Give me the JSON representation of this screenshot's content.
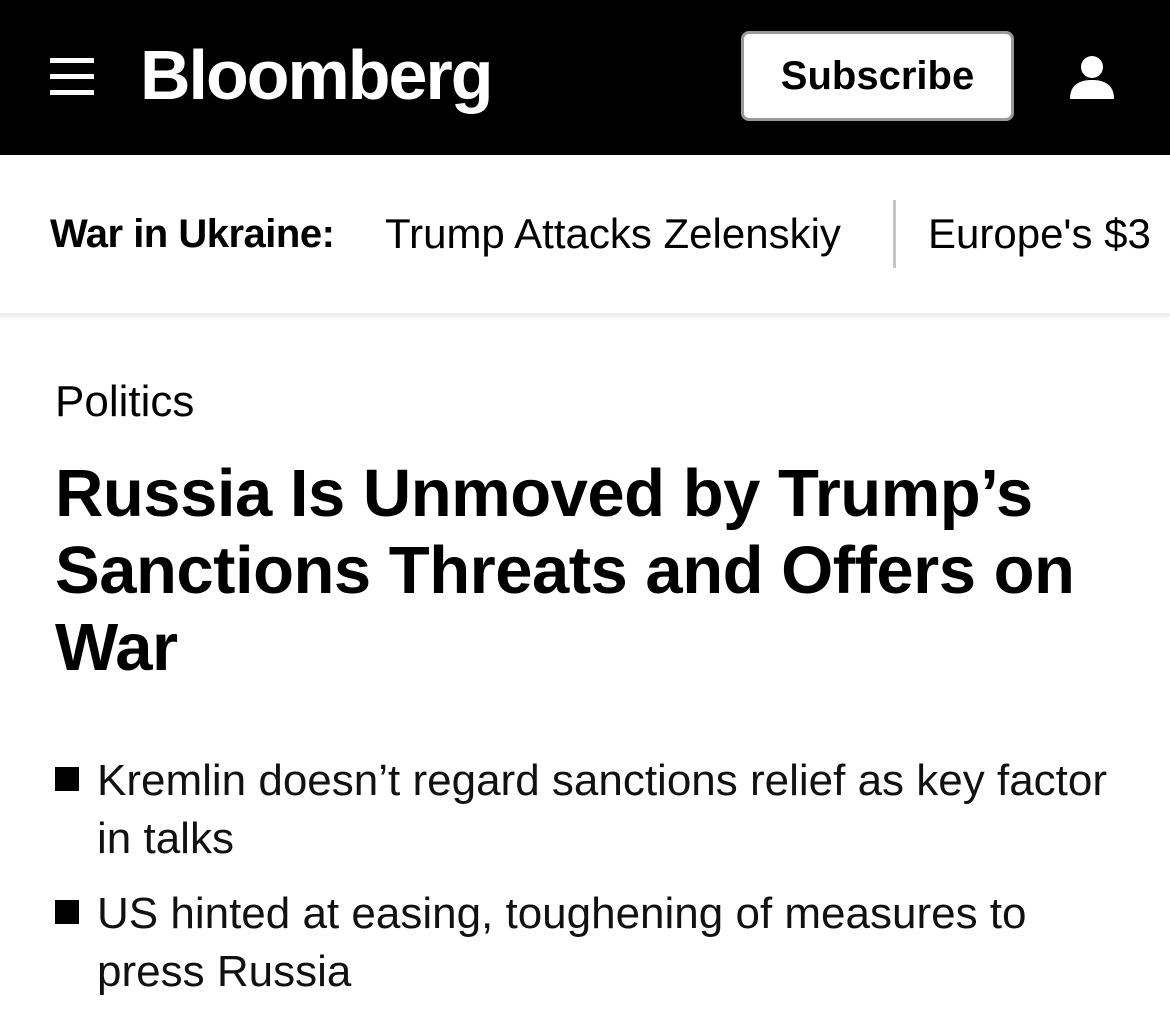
{
  "header": {
    "logo_text": "Bloomberg",
    "subscribe_label": "Subscribe",
    "menu_icon": "hamburger-menu-icon",
    "account_icon": "user-account-icon",
    "background_color": "#000000"
  },
  "ticker": {
    "label": "War in Ukraine:",
    "links": [
      "Trump Attacks Zelenskiy",
      "Europe's $3"
    ]
  },
  "article": {
    "section": "Politics",
    "headline": "Russia Is Unmoved by Trump’s Sanctions Threats and Offers on War",
    "bullets": [
      "Kremlin doesn’t regard sanctions relief as key factor in talks",
      "US hinted at easing, toughening of measures to press Russia"
    ]
  }
}
